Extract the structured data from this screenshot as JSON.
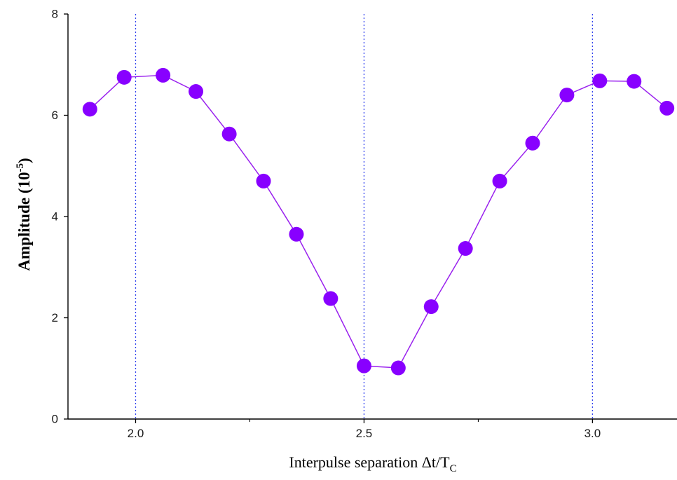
{
  "chart_data": {
    "type": "line",
    "xlabel": "Interpulse separation Δt/T",
    "xlabel_subscript": "C",
    "ylabel": "Amplitude (10",
    "ylabel_superscript": "-5",
    "ylabel_suffix": ")",
    "xlim": [
      1.852,
      3.185
    ],
    "ylim": [
      0,
      8
    ],
    "x_ticks": [
      2.0,
      2.5,
      3.0
    ],
    "x_tick_labels": [
      "2.0",
      "2.5",
      "3.0"
    ],
    "x_minor_ticks": [
      2.25,
      2.75
    ],
    "y_ticks": [
      0,
      2,
      4,
      6,
      8
    ],
    "y_tick_labels": [
      "0",
      "2",
      "4",
      "6",
      "8"
    ],
    "reference_lines_x": [
      2.0,
      2.5,
      3.0
    ],
    "grid": false,
    "series": [
      {
        "x": [
          1.9,
          1.975,
          2.06,
          2.132,
          2.205,
          2.28,
          2.352,
          2.427,
          2.5,
          2.575,
          2.647,
          2.722,
          2.797,
          2.869,
          2.944,
          3.016,
          3.091,
          3.163
        ],
        "values": [
          6.12,
          6.75,
          6.79,
          6.47,
          5.63,
          4.7,
          3.65,
          2.38,
          1.05,
          1.01,
          2.22,
          3.37,
          4.7,
          5.45,
          6.4,
          6.68,
          6.67,
          6.14
        ]
      }
    ],
    "colors": {
      "marker": "#8800ff",
      "line": "#9a22ee",
      "reference_line": "#3344ee",
      "axis": "#000000"
    }
  }
}
